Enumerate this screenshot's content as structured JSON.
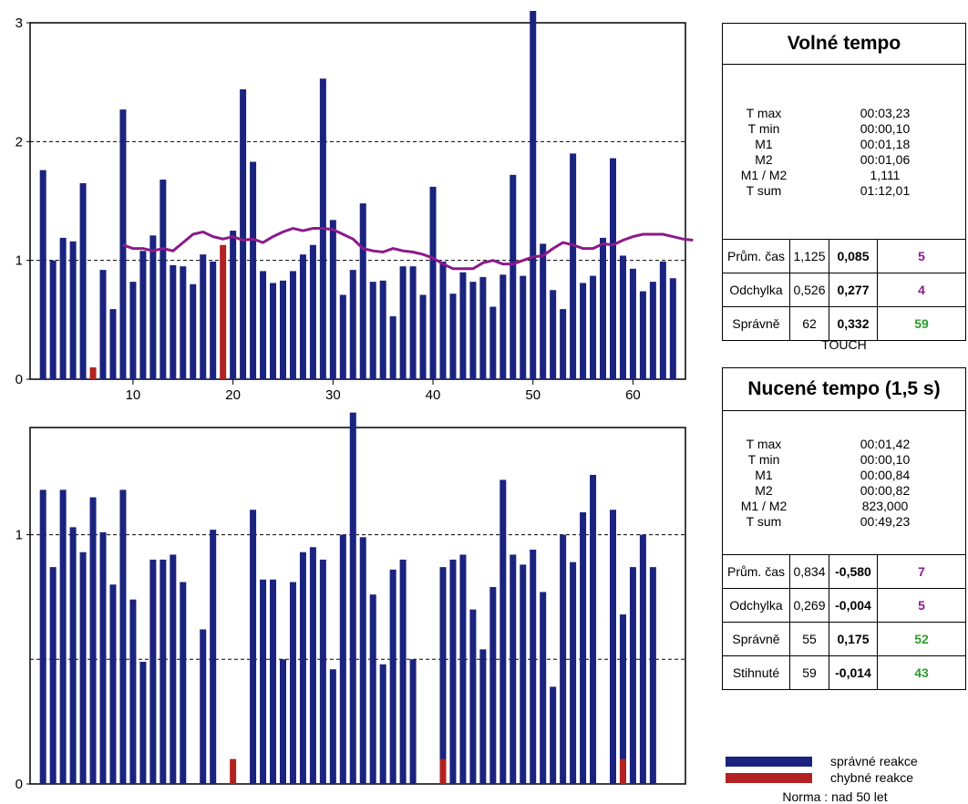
{
  "chart_data": [
    {
      "type": "bar",
      "x_ticks": [
        "10",
        "20",
        "30",
        "40",
        "50",
        "60"
      ],
      "y_ticks": [
        "0",
        "1",
        "2",
        "3"
      ],
      "ylim": [
        0,
        3
      ],
      "grid": "dashed at 1 and 2",
      "colors": {
        "correct": "#1a237e",
        "wrong": "#b22222",
        "trend": "#8b1a8b"
      },
      "series": [
        {
          "name": "správné reakce",
          "values": [
            1.76,
            1.0,
            1.19,
            1.16,
            1.65,
            0,
            0.92,
            0.59,
            2.27,
            0.82,
            1.08,
            1.21,
            1.68,
            0.96,
            0.95,
            0.8,
            1.05,
            0.99,
            0,
            1.25,
            2.44,
            1.83,
            0.91,
            0.81,
            0.83,
            0.91,
            1.05,
            1.13,
            2.53,
            1.34,
            0.71,
            0.92,
            1.48,
            0.82,
            0.83,
            0.53,
            0.95,
            0.95,
            0.71,
            1.62,
            0.99,
            0.72,
            0.9,
            0.82,
            0.86,
            0.61,
            0.88,
            1.72,
            0.87,
            3.1,
            1.14,
            0.75,
            0.59,
            1.9,
            0.81,
            0.87,
            1.19,
            1.86,
            1.04,
            0.93,
            0.74,
            0.82,
            0.99,
            0.85
          ]
        },
        {
          "name": "chybné reakce",
          "values": [
            0,
            0,
            0,
            0,
            0,
            0.1,
            0,
            0,
            0,
            0,
            0,
            0,
            0,
            0,
            0,
            0,
            0,
            0,
            1.13,
            0,
            0,
            0,
            0,
            0,
            0,
            0,
            0,
            0,
            0,
            0,
            0,
            0,
            0,
            0,
            0,
            0,
            0,
            0,
            0,
            0,
            0,
            0,
            0,
            0,
            0,
            0,
            0,
            0,
            0,
            0,
            0,
            0,
            0,
            0,
            0,
            0,
            0,
            0,
            0,
            0,
            0,
            0,
            0,
            0
          ]
        }
      ],
      "trend": {
        "start_index": 8,
        "values": [
          1.13,
          1.1,
          1.1,
          1.08,
          1.1,
          1.08,
          1.15,
          1.22,
          1.24,
          1.2,
          1.18,
          1.2,
          1.17,
          1.18,
          1.15,
          1.2,
          1.24,
          1.27,
          1.25,
          1.27,
          1.27,
          1.26,
          1.22,
          1.18,
          1.1,
          1.08,
          1.07,
          1.1,
          1.08,
          1.07,
          1.05,
          1.02,
          0.97,
          0.93,
          0.93,
          0.93,
          0.98,
          1.0,
          0.97,
          0.97,
          1.0,
          1.03,
          1.04,
          1.1,
          1.15,
          1.13,
          1.1,
          1.1,
          1.14,
          1.13,
          1.17,
          1.2,
          1.22,
          1.22,
          1.22,
          1.2,
          1.18,
          1.17
        ]
      }
    },
    {
      "type": "bar",
      "y_ticks": [
        "0",
        "1"
      ],
      "ylim": [
        0,
        1.43
      ],
      "grid": "dashed at 0.5 and 1",
      "series": [
        {
          "name": "správné reakce",
          "values": [
            1.18,
            0.87,
            1.18,
            1.03,
            0.93,
            1.15,
            1.01,
            0.8,
            1.18,
            0.74,
            0.49,
            0.9,
            0.9,
            0.92,
            0.81,
            0,
            0.62,
            1.02,
            0,
            0,
            0,
            1.1,
            0.82,
            0.82,
            0.5,
            0.81,
            0.93,
            0.95,
            0.9,
            0.46,
            1.0,
            1.49,
            0.99,
            0.76,
            0.48,
            0.86,
            0.9,
            0.5,
            0,
            0,
            0.87,
            0.9,
            0.92,
            0.7,
            0.54,
            0.79,
            1.22,
            0.92,
            0.88,
            0.94,
            0.77,
            0.39,
            1.0,
            0.89,
            1.09,
            1.24,
            0,
            1.1,
            0.68,
            0.87,
            1.0,
            0.87
          ]
        },
        {
          "name": "chybné reakce",
          "values": [
            0,
            0,
            0,
            0,
            0,
            0,
            0,
            0,
            0,
            0,
            0,
            0,
            0,
            0,
            0,
            0,
            0,
            0,
            0,
            0.1,
            0,
            0,
            0,
            0,
            0,
            0,
            0,
            0,
            0,
            0,
            0,
            0,
            0,
            0,
            0,
            0,
            0,
            0,
            0,
            0,
            0.1,
            0,
            0,
            0,
            0,
            0,
            0,
            0,
            0,
            0,
            0,
            0,
            0,
            0,
            0,
            0,
            0,
            0,
            0.1,
            0,
            0,
            0
          ]
        }
      ]
    }
  ],
  "mid_label": "TOUCH",
  "panels": {
    "free": {
      "title": "Volné tempo",
      "stat_labels": [
        "T max",
        "T min",
        "M1",
        "M2",
        "M1 / M2",
        "T sum"
      ],
      "stat_values": [
        "00:03,23",
        "00:00,10",
        "00:01,18",
        "00:01,06",
        "1,111",
        "01:12,01"
      ],
      "rows": [
        {
          "label": "Prům. čas",
          "value": "1,125",
          "dev": "0,085",
          "count": "5",
          "count_color": "purple"
        },
        {
          "label": "Odchylka",
          "value": "0,526",
          "dev": "0,277",
          "count": "4",
          "count_color": "purple"
        },
        {
          "label": "Správně",
          "value": "62",
          "dev": "0,332",
          "count": "59",
          "count_color": "green"
        }
      ]
    },
    "forced": {
      "title": "Nucené tempo (1,5 s)",
      "stat_labels": [
        "T max",
        "T min",
        "M1",
        "M2",
        "M1 / M2",
        "T sum"
      ],
      "stat_values": [
        "00:01,42",
        "00:00,10",
        "00:00,84",
        "00:00,82",
        "823,000",
        "00:49,23"
      ],
      "rows": [
        {
          "label": "Prům. čas",
          "value": "0,834",
          "dev": "-0,580",
          "count": "7",
          "count_color": "purple"
        },
        {
          "label": "Odchylka",
          "value": "0,269",
          "dev": "-0,004",
          "count": "5",
          "count_color": "purple"
        },
        {
          "label": "Správně",
          "value": "55",
          "dev": "0,175",
          "count": "52",
          "count_color": "green"
        },
        {
          "label": "Stihnuté",
          "value": "59",
          "dev": "-0,014",
          "count": "43",
          "count_color": "green"
        }
      ]
    }
  },
  "legend": {
    "correct_label": "správné reakce",
    "wrong_label": "chybné reakce",
    "norm": "Norma : nad 50 let"
  }
}
